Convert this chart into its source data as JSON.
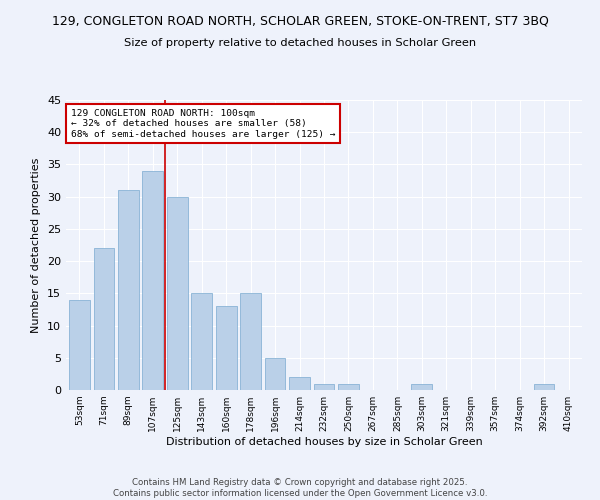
{
  "title_line1": "129, CONGLETON ROAD NORTH, SCHOLAR GREEN, STOKE-ON-TRENT, ST7 3BQ",
  "title_line2": "Size of property relative to detached houses in Scholar Green",
  "xlabel": "Distribution of detached houses by size in Scholar Green",
  "ylabel": "Number of detached properties",
  "categories": [
    "53sqm",
    "71sqm",
    "89sqm",
    "107sqm",
    "125sqm",
    "143sqm",
    "160sqm",
    "178sqm",
    "196sqm",
    "214sqm",
    "232sqm",
    "250sqm",
    "267sqm",
    "285sqm",
    "303sqm",
    "321sqm",
    "339sqm",
    "357sqm",
    "374sqm",
    "392sqm",
    "410sqm"
  ],
  "values": [
    14,
    22,
    31,
    34,
    30,
    15,
    13,
    15,
    5,
    2,
    1,
    1,
    0,
    0,
    1,
    0,
    0,
    0,
    0,
    1,
    0
  ],
  "bar_color": "#bad0e8",
  "bar_edgecolor": "#7aaad0",
  "vline_color": "#cc0000",
  "vline_index": 3.5,
  "ylim": [
    0,
    45
  ],
  "yticks": [
    0,
    5,
    10,
    15,
    20,
    25,
    30,
    35,
    40,
    45
  ],
  "annotation_text": "129 CONGLETON ROAD NORTH: 100sqm\n← 32% of detached houses are smaller (58)\n68% of semi-detached houses are larger (125) →",
  "annotation_box_facecolor": "#ffffff",
  "annotation_box_edgecolor": "#cc0000",
  "footer_line1": "Contains HM Land Registry data © Crown copyright and database right 2025.",
  "footer_line2": "Contains public sector information licensed under the Open Government Licence v3.0.",
  "background_color": "#eef2fb",
  "grid_color": "#ffffff",
  "fig_width": 6.0,
  "fig_height": 5.0,
  "dpi": 100
}
